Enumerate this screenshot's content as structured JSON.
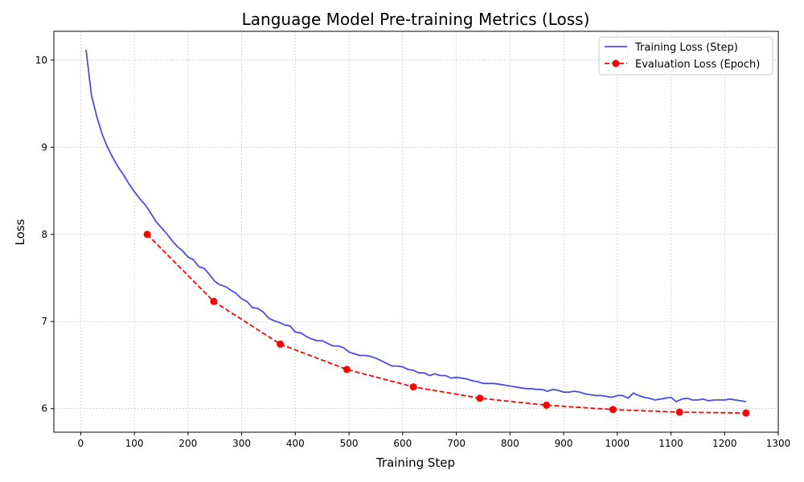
{
  "chart_data": {
    "type": "line",
    "title": "Language Model Pre-training Metrics (Loss)",
    "xlabel": "Training Step",
    "ylabel": "Loss",
    "xlim": [
      -50,
      1300
    ],
    "ylim": [
      5.73,
      10.33
    ],
    "x_ticks": [
      0,
      100,
      200,
      300,
      400,
      500,
      600,
      700,
      800,
      900,
      1000,
      1100,
      1200,
      1300
    ],
    "y_ticks": [
      6,
      7,
      8,
      9,
      10
    ],
    "grid": true,
    "legend_position": "top-right",
    "series": [
      {
        "name": "Training Loss (Step)",
        "style": "solid",
        "color": "#4b4bea",
        "x": [
          10,
          20,
          30,
          40,
          50,
          60,
          70,
          80,
          90,
          100,
          110,
          120,
          130,
          140,
          150,
          160,
          170,
          180,
          190,
          200,
          210,
          220,
          230,
          240,
          250,
          260,
          270,
          280,
          290,
          300,
          310,
          320,
          330,
          340,
          350,
          360,
          370,
          380,
          390,
          400,
          410,
          420,
          430,
          440,
          450,
          460,
          470,
          480,
          490,
          500,
          510,
          520,
          530,
          540,
          550,
          560,
          570,
          580,
          590,
          600,
          610,
          620,
          630,
          640,
          650,
          660,
          670,
          680,
          690,
          700,
          710,
          720,
          730,
          740,
          750,
          760,
          770,
          780,
          790,
          800,
          810,
          820,
          830,
          840,
          850,
          860,
          870,
          880,
          890,
          900,
          910,
          920,
          930,
          940,
          950,
          960,
          970,
          980,
          990,
          1000,
          1010,
          1020,
          1030,
          1040,
          1050,
          1060,
          1070,
          1080,
          1090,
          1100,
          1110,
          1120,
          1130,
          1140,
          1150,
          1160,
          1170,
          1180,
          1190,
          1200,
          1210,
          1220,
          1230,
          1240
        ],
        "y": [
          10.12,
          9.6,
          9.35,
          9.15,
          9.0,
          8.88,
          8.77,
          8.68,
          8.58,
          8.49,
          8.41,
          8.34,
          8.25,
          8.15,
          8.08,
          8.01,
          7.93,
          7.86,
          7.81,
          7.74,
          7.71,
          7.63,
          7.61,
          7.54,
          7.46,
          7.42,
          7.4,
          7.36,
          7.32,
          7.26,
          7.23,
          7.16,
          7.15,
          7.11,
          7.04,
          7.01,
          6.99,
          6.96,
          6.95,
          6.88,
          6.87,
          6.83,
          6.8,
          6.78,
          6.78,
          6.75,
          6.72,
          6.72,
          6.7,
          6.65,
          6.63,
          6.61,
          6.61,
          6.6,
          6.58,
          6.55,
          6.52,
          6.49,
          6.49,
          6.48,
          6.45,
          6.44,
          6.41,
          6.41,
          6.38,
          6.4,
          6.38,
          6.38,
          6.35,
          6.36,
          6.35,
          6.34,
          6.32,
          6.31,
          6.29,
          6.29,
          6.29,
          6.28,
          6.27,
          6.26,
          6.25,
          6.24,
          6.23,
          6.23,
          6.22,
          6.22,
          6.2,
          6.22,
          6.21,
          6.19,
          6.19,
          6.2,
          6.19,
          6.17,
          6.16,
          6.15,
          6.15,
          6.14,
          6.13,
          6.15,
          6.15,
          6.12,
          6.18,
          6.15,
          6.13,
          6.12,
          6.1,
          6.11,
          6.12,
          6.13,
          6.08,
          6.11,
          6.12,
          6.1,
          6.1,
          6.11,
          6.09,
          6.1,
          6.1,
          6.1,
          6.11,
          6.1,
          6.09,
          6.08
        ]
      },
      {
        "name": "Evaluation Loss (Epoch)",
        "style": "dashed",
        "marker": "circle",
        "color": "#ff0000",
        "x": [
          124,
          248,
          372,
          496,
          620,
          744,
          868,
          992,
          1116,
          1240
        ],
        "y": [
          8.0,
          7.23,
          6.74,
          6.45,
          6.25,
          6.12,
          6.04,
          5.99,
          5.96,
          5.95
        ]
      }
    ]
  }
}
